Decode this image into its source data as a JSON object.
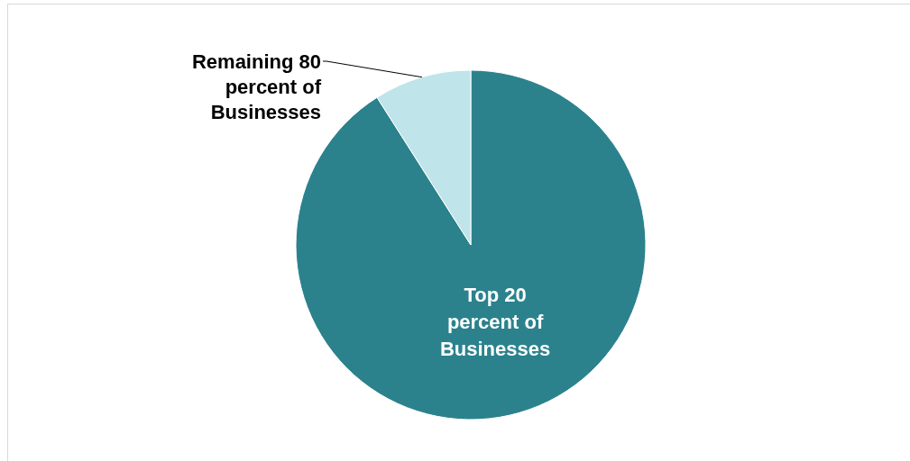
{
  "chart_data": {
    "type": "pie",
    "categories": [
      "Top 20 percent of Businesses",
      "Remaining 80 percent of Businesses"
    ],
    "values": [
      91,
      9
    ],
    "colors": [
      "#2b828c",
      "#bfe4ea"
    ]
  }
}
